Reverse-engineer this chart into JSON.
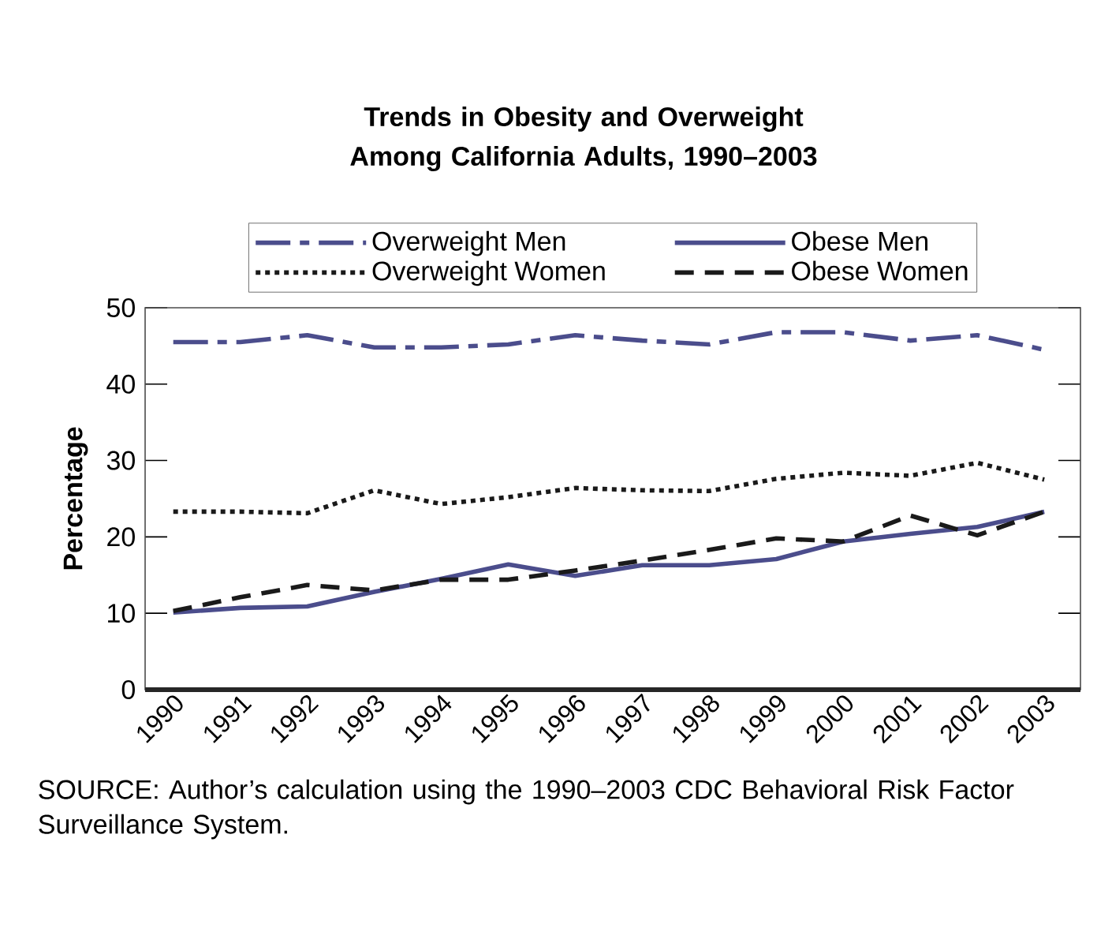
{
  "chart_data": {
    "type": "line",
    "title": "Trends in Obesity and Overweight Among California Adults, 1990–2003",
    "ylabel": "Percentage",
    "categories": [
      "1990",
      "1991",
      "1992",
      "1993",
      "1994",
      "1995",
      "1996",
      "1997",
      "1998",
      "1999",
      "2000",
      "2001",
      "2002",
      "2003"
    ],
    "ylim": [
      0,
      50
    ],
    "yticks": [
      0,
      10,
      20,
      30,
      40,
      50
    ],
    "grid": false,
    "legend": "top",
    "marker": "none",
    "series": [
      {
        "name": "Overweight Men",
        "color": "#4b4d8c",
        "line_style": "dashdot",
        "values": [
          45.5,
          45.5,
          46.4,
          44.8,
          44.8,
          45.2,
          46.4,
          45.7,
          45.2,
          46.8,
          46.8,
          45.7,
          46.4,
          44.5
        ]
      },
      {
        "name": "Obese Men",
        "color": "#4b4d8c",
        "line_style": "solid",
        "values": [
          10.1,
          10.7,
          10.9,
          12.8,
          14.5,
          16.4,
          14.9,
          16.3,
          16.3,
          17.1,
          19.4,
          20.4,
          21.3,
          23.3
        ]
      },
      {
        "name": "Overweight Women",
        "color": "#1a1a1a",
        "line_style": "dotted",
        "values": [
          23.3,
          23.3,
          23.1,
          26.1,
          24.3,
          25.2,
          26.4,
          26.1,
          26.0,
          27.6,
          28.4,
          28.0,
          29.7,
          27.5
        ]
      },
      {
        "name": "Obese Women",
        "color": "#1a1a1a",
        "line_style": "dashed",
        "values": [
          10.3,
          12.1,
          13.7,
          13.0,
          14.4,
          14.4,
          15.6,
          16.9,
          18.3,
          19.8,
          19.4,
          22.8,
          20.2,
          23.3
        ]
      }
    ],
    "annotations": [
      "SOURCE: Author’s calculation using the 1990–2003 CDC Behavioral Risk Factor Surveillance System."
    ]
  }
}
